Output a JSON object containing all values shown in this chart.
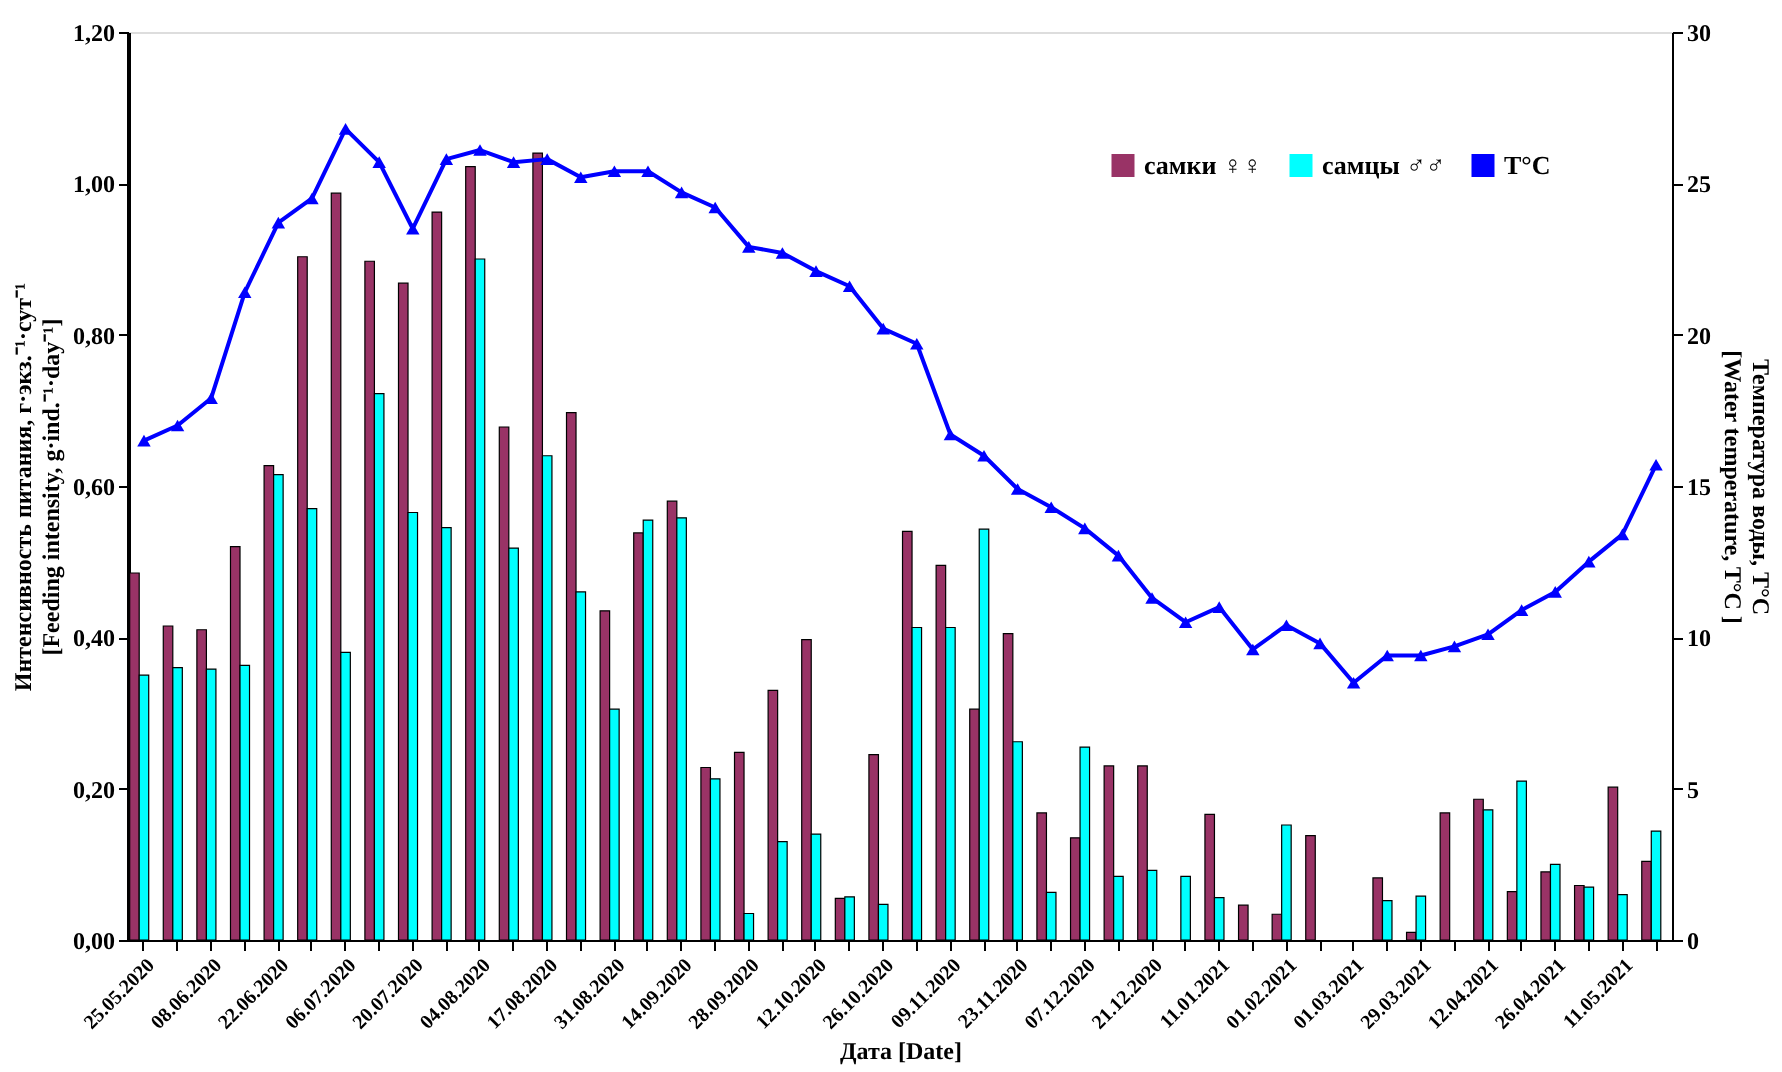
{
  "chart_data": {
    "type": "bar",
    "xlabel": "Дата [Date]",
    "ylabel": "Интенсивность питания, г·экз.⁻¹·сут⁻¹\n[Feeding  intensity, g·ind.⁻¹·day⁻¹]",
    "y2label": "Температура воды, T°C\n[Water temperature, T°C ]",
    "categories": [
      "25.05.2020",
      null,
      "08.06.2020",
      null,
      "22.06.2020",
      null,
      "06.07.2020",
      null,
      "20.07.2020",
      null,
      "04.08.2020",
      null,
      "17.08.2020",
      null,
      "31.08.2020",
      null,
      "14.09.2020",
      null,
      "28.09.2020",
      null,
      "12.10.2020",
      null,
      "26.10.2020",
      null,
      "09.11.2020",
      null,
      "23.11.2020",
      null,
      "07.12.2020",
      null,
      "21.12.2020",
      null,
      "11.01.2021",
      null,
      "01.02.2021",
      null,
      "01.03.2021",
      null,
      "29.03.2021",
      null,
      "12.04.2021",
      null,
      "26.04.2021",
      null,
      "11.05.2021",
      null
    ],
    "series": [
      {
        "name": "самки ♀♀",
        "color": "#993366",
        "values": [
          0.485,
          0.415,
          0.41,
          0.52,
          0.627,
          0.903,
          0.987,
          0.897,
          0.868,
          0.962,
          1.022,
          0.678,
          1.04,
          0.697,
          0.435,
          0.538,
          0.58,
          0.228,
          0.248,
          0.33,
          0.397,
          0.055,
          0.245,
          0.54,
          0.495,
          0.305,
          0.405,
          0.168,
          0.135,
          0.23,
          0.23,
          null,
          0.166,
          0.046,
          0.034,
          0.138,
          null,
          0.082,
          0.01,
          0.168,
          0.186,
          0.064,
          0.09,
          0.072,
          0.202,
          0.104
        ]
      },
      {
        "name": "самцы ♂♂",
        "color": "#00ffff",
        "values": [
          0.35,
          0.36,
          0.358,
          0.363,
          0.615,
          0.57,
          0.38,
          0.722,
          0.565,
          0.545,
          0.9,
          0.518,
          0.64,
          0.46,
          0.305,
          0.555,
          0.558,
          0.213,
          0.035,
          0.13,
          0.14,
          0.057,
          0.047,
          0.413,
          0.413,
          0.543,
          0.262,
          0.063,
          0.255,
          0.084,
          0.092,
          0.084,
          0.056,
          null,
          0.152,
          null,
          null,
          0.052,
          0.058,
          null,
          0.172,
          0.21,
          0.1,
          0.07,
          0.06,
          0.144
        ]
      },
      {
        "name": "T°C",
        "type": "line",
        "axis": "y2",
        "color": "#0000ff",
        "marker": "triangle",
        "line_style": "solid",
        "values": [
          16.5,
          17.0,
          17.9,
          21.4,
          23.7,
          24.5,
          26.8,
          25.7,
          23.5,
          25.8,
          26.1,
          25.7,
          25.8,
          25.2,
          25.4,
          25.4,
          24.7,
          24.2,
          22.9,
          22.7,
          22.1,
          21.6,
          20.2,
          19.7,
          16.7,
          16.0,
          14.9,
          14.3,
          13.6,
          12.7,
          11.3,
          10.5,
          11.0,
          9.6,
          10.4,
          9.8,
          8.5,
          9.4,
          9.4,
          9.7,
          10.1,
          10.9,
          11.5,
          12.5,
          13.4,
          15.7
        ]
      }
    ],
    "ylim": [
      0,
      1.2
    ],
    "yticks": [
      {
        "value": 0,
        "label": "0,00"
      },
      {
        "value": 0.2,
        "label": "0,20"
      },
      {
        "value": 0.4,
        "label": "0,40"
      },
      {
        "value": 0.6,
        "label": "0,60"
      },
      {
        "value": 0.8,
        "label": "0,80"
      },
      {
        "value": 1.0,
        "label": "1,00"
      },
      {
        "value": 1.2,
        "label": "1,20"
      }
    ],
    "y2lim": [
      0,
      30
    ],
    "y2ticks": [
      0,
      5,
      10,
      15,
      20,
      25,
      30
    ],
    "grid": false,
    "legend": "top right"
  }
}
